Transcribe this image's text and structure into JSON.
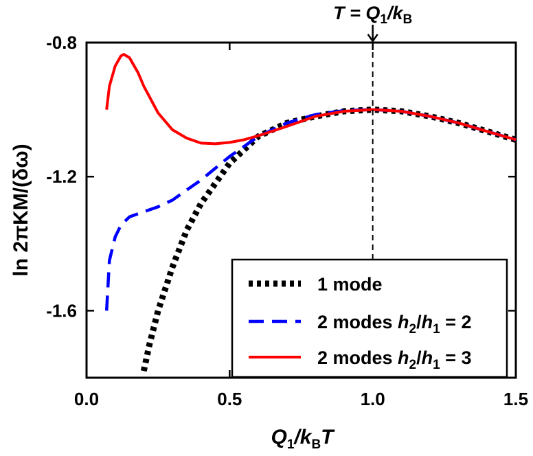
{
  "chart_data": {
    "type": "line",
    "title": "",
    "xlabel": {
      "main": "Q",
      "sub1": "1",
      "mid": "/k",
      "sub2": "B",
      "end": "T"
    },
    "ylabel": "ln 2πKM/(δω)",
    "xlim": [
      0.0,
      1.5
    ],
    "ylim": [
      -1.8,
      -0.8
    ],
    "x_ticks": [
      0.0,
      0.5,
      1.0,
      1.5
    ],
    "x_tick_labels": [
      "0.0",
      "0.5",
      "1.0",
      "1.5"
    ],
    "y_ticks": [
      -0.8,
      -1.2,
      -1.6
    ],
    "y_tick_labels": [
      "-0.8",
      "-1.2",
      "-1.6"
    ],
    "annotation": {
      "x": 1.0,
      "pre": "T = Q",
      "sub1": "1",
      "mid": "/k",
      "sub2": "B"
    },
    "legend_position": "lower-right",
    "series": [
      {
        "name": "1 mode",
        "label": {
          "text": "1 mode"
        },
        "color": "#000000",
        "style": "dotted",
        "points": [
          [
            0.2,
            -1.78
          ],
          [
            0.22,
            -1.7
          ],
          [
            0.25,
            -1.6
          ],
          [
            0.3,
            -1.47
          ],
          [
            0.35,
            -1.36
          ],
          [
            0.4,
            -1.28
          ],
          [
            0.45,
            -1.22
          ],
          [
            0.5,
            -1.16
          ],
          [
            0.55,
            -1.12
          ],
          [
            0.6,
            -1.08
          ],
          [
            0.7,
            -1.04
          ],
          [
            0.8,
            -1.02
          ],
          [
            0.9,
            -1.005
          ],
          [
            1.0,
            -1.0
          ],
          [
            1.1,
            -1.005
          ],
          [
            1.2,
            -1.02
          ],
          [
            1.3,
            -1.04
          ],
          [
            1.4,
            -1.065
          ],
          [
            1.5,
            -1.09
          ]
        ]
      },
      {
        "name": "2 modes h2/h1 = 2",
        "label": {
          "pre": "2 modes ",
          "h2": "h",
          "h2sub": "2",
          "slash": "/",
          "h1": "h",
          "h1sub": "1",
          "post": " = 2"
        },
        "color": "#0000ff",
        "style": "dashed",
        "points": [
          [
            0.07,
            -1.6
          ],
          [
            0.08,
            -1.45
          ],
          [
            0.1,
            -1.38
          ],
          [
            0.12,
            -1.345
          ],
          [
            0.15,
            -1.32
          ],
          [
            0.2,
            -1.305
          ],
          [
            0.25,
            -1.29
          ],
          [
            0.3,
            -1.27
          ],
          [
            0.35,
            -1.24
          ],
          [
            0.4,
            -1.21
          ],
          [
            0.45,
            -1.175
          ],
          [
            0.5,
            -1.14
          ],
          [
            0.55,
            -1.11
          ],
          [
            0.6,
            -1.08
          ],
          [
            0.7,
            -1.04
          ],
          [
            0.8,
            -1.015
          ],
          [
            0.9,
            -1.003
          ],
          [
            1.0,
            -1.0
          ],
          [
            1.1,
            -1.005
          ],
          [
            1.2,
            -1.02
          ],
          [
            1.3,
            -1.04
          ],
          [
            1.4,
            -1.065
          ],
          [
            1.5,
            -1.09
          ]
        ]
      },
      {
        "name": "2 modes h2/h1 = 3",
        "label": {
          "pre": "2 modes ",
          "h2": "h",
          "h2sub": "2",
          "slash": "/",
          "h1": "h",
          "h1sub": "1",
          "post": " = 3"
        },
        "color": "#ff0000",
        "style": "solid",
        "points": [
          [
            0.07,
            -1.0
          ],
          [
            0.08,
            -0.93
          ],
          [
            0.1,
            -0.87
          ],
          [
            0.12,
            -0.84
          ],
          [
            0.13,
            -0.835
          ],
          [
            0.15,
            -0.845
          ],
          [
            0.18,
            -0.89
          ],
          [
            0.2,
            -0.93
          ],
          [
            0.25,
            -1.01
          ],
          [
            0.3,
            -1.06
          ],
          [
            0.35,
            -1.085
          ],
          [
            0.4,
            -1.1
          ],
          [
            0.45,
            -1.102
          ],
          [
            0.5,
            -1.098
          ],
          [
            0.55,
            -1.09
          ],
          [
            0.6,
            -1.078
          ],
          [
            0.7,
            -1.05
          ],
          [
            0.8,
            -1.02
          ],
          [
            0.9,
            -1.005
          ],
          [
            1.0,
            -1.0
          ],
          [
            1.1,
            -1.005
          ],
          [
            1.2,
            -1.02
          ],
          [
            1.3,
            -1.04
          ],
          [
            1.4,
            -1.065
          ],
          [
            1.5,
            -1.09
          ]
        ]
      }
    ]
  }
}
